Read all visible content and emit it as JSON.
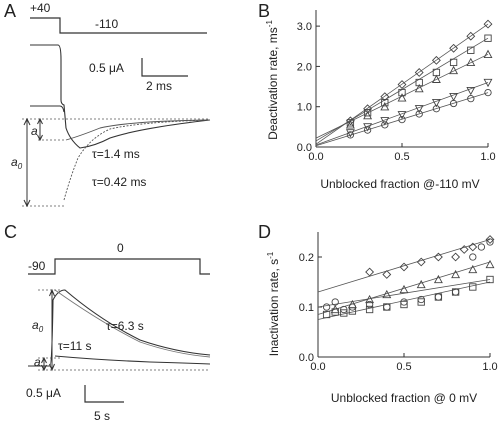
{
  "panels": {
    "A": {
      "label": "A",
      "protocol": {
        "prepulse_label": "+40",
        "test_label": "-110"
      },
      "scalebar": {
        "current": "0.5 μA",
        "time": "2 ms"
      },
      "annotations": {
        "tau_fast": "τ=1.4 ms",
        "tau_slow": "τ=0.42 ms",
        "a_small": "a",
        "a_zero": "a",
        "a_zero_sub": "0"
      }
    },
    "C": {
      "label": "C",
      "protocol": {
        "holding_label": "-90",
        "test_label": "0"
      },
      "scalebar": {
        "current": "0.5 μA",
        "time": "5 s"
      },
      "annotations": {
        "tau_fast": "τ=6.3 s",
        "tau_slow": "τ=11 s",
        "a_small": "a",
        "a_zero": "a",
        "a_zero_sub": "0"
      }
    }
  },
  "chart_data": [
    {
      "panel": "B",
      "type": "scatter",
      "ylabel": "Deactivation rate, ms",
      "ylabel_sup": "-1",
      "xlabel": "Unblocked fraction @-110 mV",
      "xlim": [
        0,
        1
      ],
      "ylim": [
        0,
        3.4
      ],
      "xticks": [
        "0.0",
        "0.5",
        "1.0"
      ],
      "yticks": [
        "0.0",
        "1.0",
        "2.0",
        "3.0"
      ],
      "xtick_values": [
        0,
        0.5,
        1
      ],
      "ytick_values": [
        0,
        1,
        2,
        3
      ],
      "series": [
        {
          "marker": "diamond",
          "x": [
            0.2,
            0.3,
            0.4,
            0.5,
            0.6,
            0.7,
            0.8,
            0.9,
            1.0
          ],
          "y": [
            0.65,
            0.95,
            1.25,
            1.55,
            1.85,
            2.15,
            2.45,
            2.75,
            3.05
          ],
          "fit": [
            [
              0,
              0.07
            ],
            [
              1,
              3.05
            ]
          ]
        },
        {
          "marker": "square",
          "x": [
            0.2,
            0.3,
            0.4,
            0.5,
            0.6,
            0.7,
            0.8,
            0.9,
            1.0
          ],
          "y": [
            0.6,
            0.85,
            1.1,
            1.35,
            1.6,
            1.85,
            2.1,
            2.4,
            2.7
          ],
          "fit": [
            [
              0,
              0.15
            ],
            [
              1,
              2.7
            ]
          ]
        },
        {
          "marker": "triangle",
          "x": [
            0.2,
            0.3,
            0.4,
            0.5,
            0.6,
            0.7,
            0.8,
            0.9,
            1.0
          ],
          "y": [
            0.55,
            0.78,
            1.0,
            1.22,
            1.45,
            1.68,
            1.9,
            2.1,
            2.3
          ],
          "fit": [
            [
              0,
              0.22
            ],
            [
              1,
              2.3
            ]
          ]
        },
        {
          "marker": "triangle-down",
          "x": [
            0.2,
            0.3,
            0.4,
            0.5,
            0.6,
            0.7,
            0.8,
            0.9,
            1.0
          ],
          "y": [
            0.35,
            0.5,
            0.65,
            0.8,
            0.95,
            1.1,
            1.25,
            1.4,
            1.6
          ],
          "fit": [
            [
              0,
              0.05
            ],
            [
              1,
              1.6
            ]
          ]
        },
        {
          "marker": "circle",
          "x": [
            0.2,
            0.3,
            0.4,
            0.5,
            0.6,
            0.7,
            0.8,
            0.9,
            1.0
          ],
          "y": [
            0.3,
            0.42,
            0.55,
            0.68,
            0.82,
            0.95,
            1.08,
            1.2,
            1.35
          ],
          "fit": [
            [
              0,
              0.03
            ],
            [
              1,
              1.35
            ]
          ]
        }
      ]
    },
    {
      "panel": "D",
      "type": "scatter",
      "ylabel": "Inactivation rate, s",
      "ylabel_sup": "-1",
      "xlabel": "Unblocked fraction @ 0 mV",
      "xlim": [
        0,
        1
      ],
      "ylim": [
        0,
        0.25
      ],
      "xticks": [
        "0.0",
        "0.5",
        "1.0"
      ],
      "yticks": [
        "0.0",
        "0.1",
        "0.2"
      ],
      "xtick_values": [
        0,
        0.5,
        1
      ],
      "ytick_values": [
        0,
        0.1,
        0.2
      ],
      "series": [
        {
          "marker": "diamond",
          "x": [
            0.3,
            0.4,
            0.5,
            0.6,
            0.7,
            0.8,
            0.85,
            0.9,
            1.0
          ],
          "y": [
            0.17,
            0.165,
            0.18,
            0.19,
            0.2,
            0.2,
            0.215,
            0.22,
            0.235
          ],
          "fit": [
            [
              0,
              0.13
            ],
            [
              1,
              0.235
            ]
          ]
        },
        {
          "marker": "circle",
          "x": [
            0.05,
            0.1,
            0.15,
            0.2,
            0.3,
            0.4,
            0.5,
            0.6,
            0.7,
            0.8,
            0.9,
            0.95,
            1.0
          ],
          "y": [
            0.1,
            0.11,
            0.095,
            0.1,
            0.105,
            0.1,
            0.11,
            0.115,
            0.12,
            0.13,
            0.2,
            0.22,
            0.23
          ],
          "fit": [
            [
              0,
              0.1
            ],
            [
              1,
              0.155
            ]
          ]
        },
        {
          "marker": "triangle",
          "x": [
            0.1,
            0.2,
            0.3,
            0.4,
            0.5,
            0.6,
            0.7,
            0.8,
            0.9,
            1.0
          ],
          "y": [
            0.095,
            0.105,
            0.115,
            0.125,
            0.135,
            0.145,
            0.155,
            0.165,
            0.175,
            0.185
          ],
          "fit": [
            [
              0,
              0.085
            ],
            [
              1,
              0.19
            ]
          ]
        },
        {
          "marker": "square",
          "x": [
            0.05,
            0.1,
            0.15,
            0.2,
            0.3,
            0.4,
            0.5,
            0.6,
            0.7,
            0.8,
            0.9,
            1.0
          ],
          "y": [
            0.085,
            0.09,
            0.088,
            0.092,
            0.095,
            0.1,
            0.105,
            0.11,
            0.12,
            0.13,
            0.14,
            0.155
          ],
          "fit": [
            [
              0,
              0.075
            ],
            [
              1,
              0.15
            ]
          ]
        }
      ]
    }
  ]
}
